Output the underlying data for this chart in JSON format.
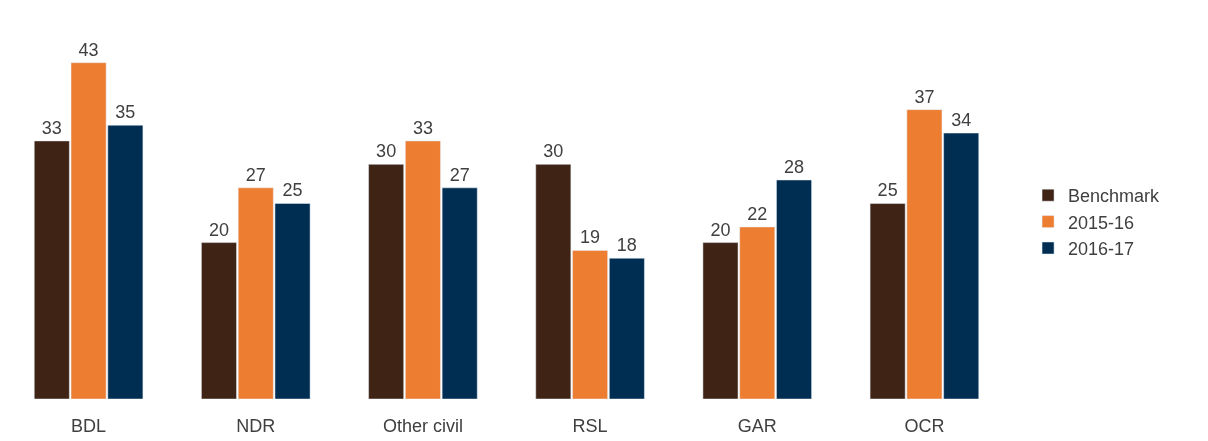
{
  "chart_data": {
    "type": "bar",
    "categories": [
      "BDL",
      "NDR",
      "Other civil",
      "RSL",
      "GAR",
      "OCR"
    ],
    "series": [
      {
        "name": "Benchmark",
        "color": "#3f2415",
        "values": [
          33,
          20,
          30,
          30,
          20,
          25
        ]
      },
      {
        "name": "2015-16",
        "color": "#ed7d31",
        "values": [
          43,
          27,
          33,
          19,
          22,
          37
        ]
      },
      {
        "name": "2016-17",
        "color": "#002d52",
        "values": [
          35,
          25,
          27,
          18,
          28,
          34
        ]
      }
    ],
    "data_labels": true,
    "legend": "right"
  }
}
